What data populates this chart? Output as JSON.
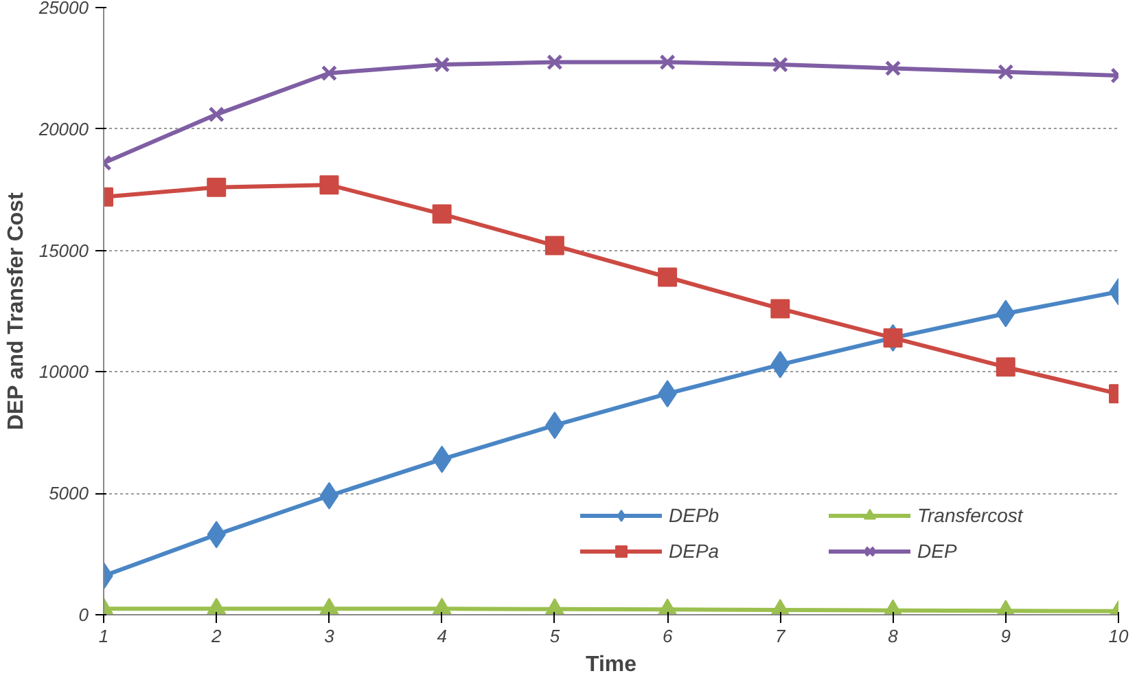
{
  "chart_data": {
    "type": "line",
    "xlabel": "Time",
    "ylabel": "DEP and Transfer Cost",
    "x": [
      1,
      2,
      3,
      4,
      5,
      6,
      7,
      8,
      9,
      10
    ],
    "xlim": [
      1,
      10
    ],
    "xticks": [
      1,
      2,
      3,
      4,
      5,
      6,
      7,
      8,
      9,
      10
    ],
    "ylim": [
      0,
      25000
    ],
    "yticks": [
      0,
      5000,
      10000,
      15000,
      20000,
      25000
    ],
    "grid": "y",
    "legend": "bottom right",
    "line_style": "solid",
    "series": [
      {
        "name": "DEPb",
        "color": "#4a86c5",
        "marker": "diamond",
        "values": [
          1600,
          3300,
          4900,
          6400,
          7800,
          9100,
          10300,
          11400,
          12400,
          13300
        ]
      },
      {
        "name": "DEPa",
        "color": "#cc4a43",
        "marker": "square",
        "values": [
          17200,
          17600,
          17700,
          16500,
          15200,
          13900,
          12600,
          11400,
          10200,
          9100
        ]
      },
      {
        "name": "Transfercost",
        "color": "#9bc04f",
        "marker": "triangle",
        "values": [
          250,
          250,
          250,
          250,
          230,
          220,
          200,
          180,
          160,
          150
        ]
      },
      {
        "name": "DEP",
        "color": "#7f5ea4",
        "marker": "cross",
        "values": [
          18600,
          20600,
          22300,
          22650,
          22750,
          22750,
          22650,
          22500,
          22350,
          22200
        ]
      }
    ]
  }
}
